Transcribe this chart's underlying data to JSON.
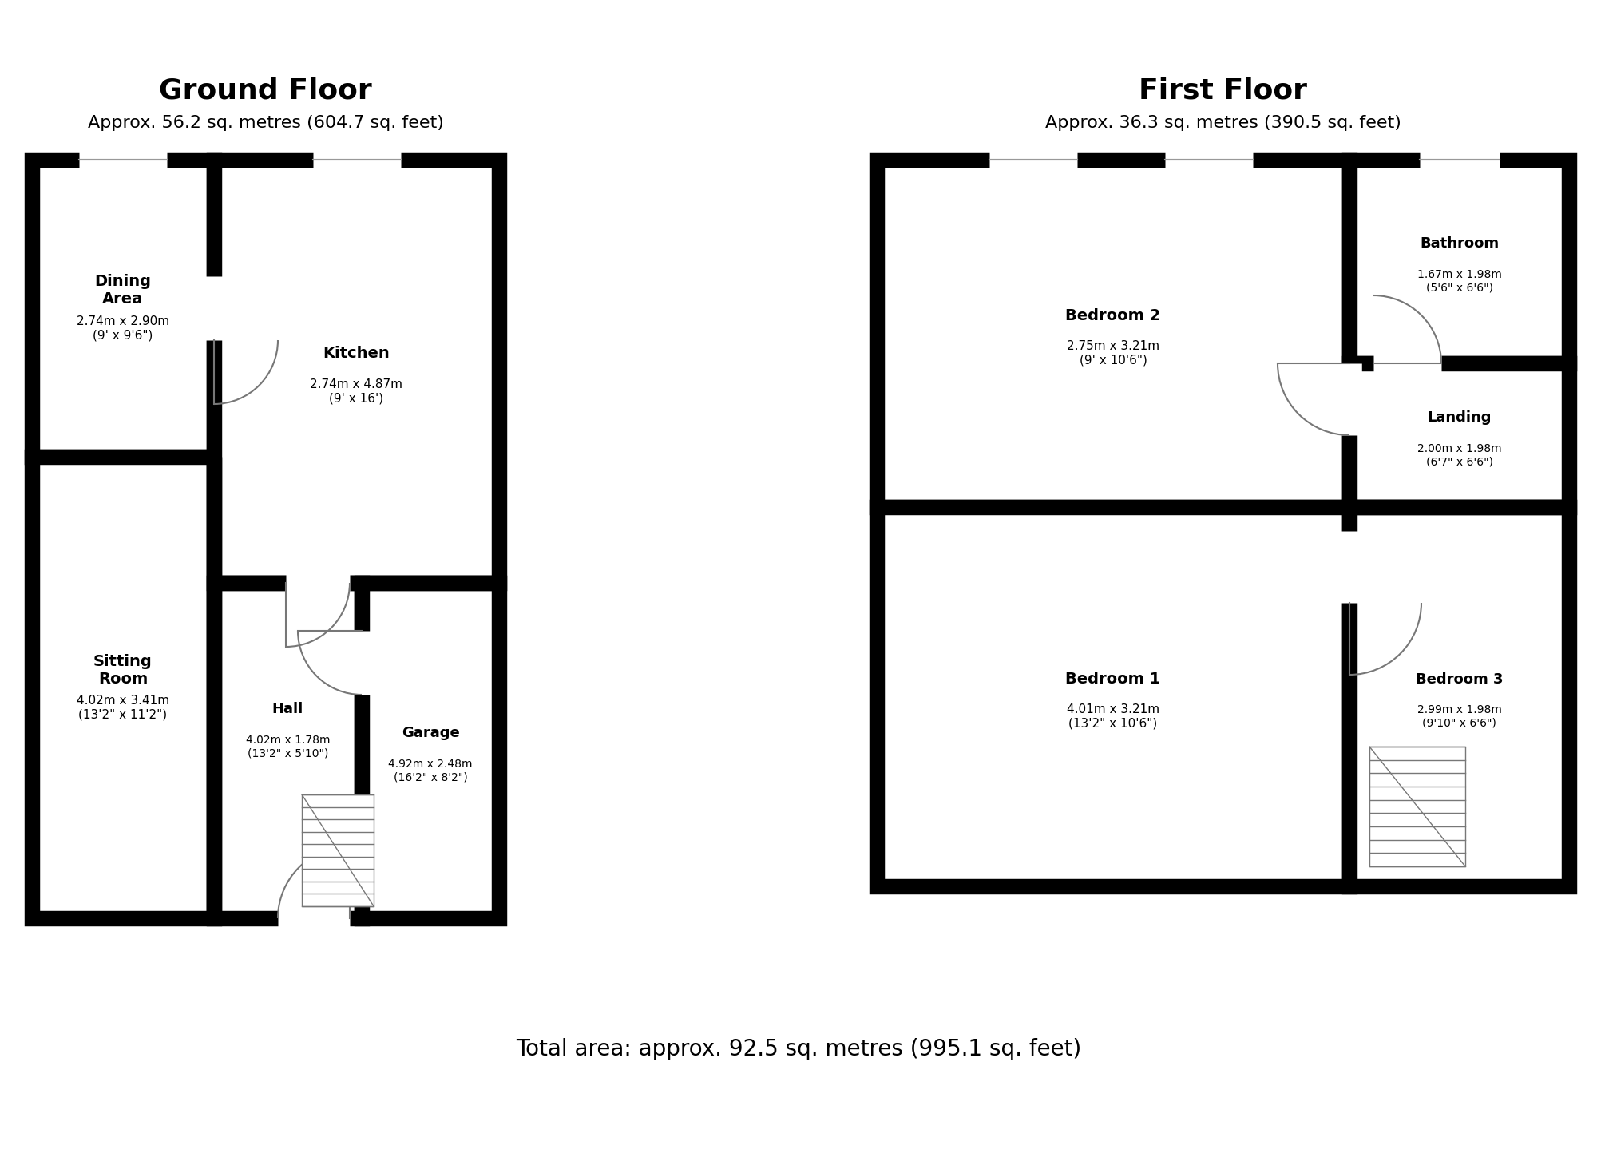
{
  "title_ground": "Ground Floor",
  "subtitle_ground": "Approx. 56.2 sq. metres (604.7 sq. feet)",
  "title_first": "First Floor",
  "subtitle_first": "Approx. 36.3 sq. metres (390.5 sq. feet)",
  "total_area": "Total area: approx. 92.5 sq. metres (995.1 sq. feet)",
  "bg_color": "#ffffff",
  "wall_color": "#000000",
  "door_color": "#aaaaaa",
  "rooms": {
    "dining_area": {
      "label": "Dining\nArea",
      "sublabel": "2.74m x 2.90m\n(9' x 9'6\")"
    },
    "kitchen": {
      "label": "Kitchen",
      "sublabel": "2.74m x 4.87m\n(9' x 16')"
    },
    "sitting_room": {
      "label": "Sitting\nRoom",
      "sublabel": "4.02m x 3.41m\n(13'2\" x 11'2\")"
    },
    "hall": {
      "label": "Hall",
      "sublabel": "4.02m x 1.78m\n(13'2\" x 5'10\")"
    },
    "garage": {
      "label": "Garage",
      "sublabel": "4.92m x 2.48m\n(16'2\" x 8'2\")"
    },
    "bedroom2": {
      "label": "Bedroom 2",
      "sublabel": "2.75m x 3.21m\n(9' x 10'6\")"
    },
    "bathroom": {
      "label": "Bathroom",
      "sublabel": "1.67m x 1.98m\n(5'6\" x 6'6\")"
    },
    "landing": {
      "label": "Landing",
      "sublabel": "2.00m x 1.98m\n(6'7\" x 6'6\")"
    },
    "bedroom1": {
      "label": "Bedroom 1",
      "sublabel": "4.01m x 3.21m\n(13'2\" x 10'6\")"
    },
    "bedroom3": {
      "label": "Bedroom 3",
      "sublabel": "2.99m x 1.98m\n(9'10\" x 6'6\")"
    }
  }
}
